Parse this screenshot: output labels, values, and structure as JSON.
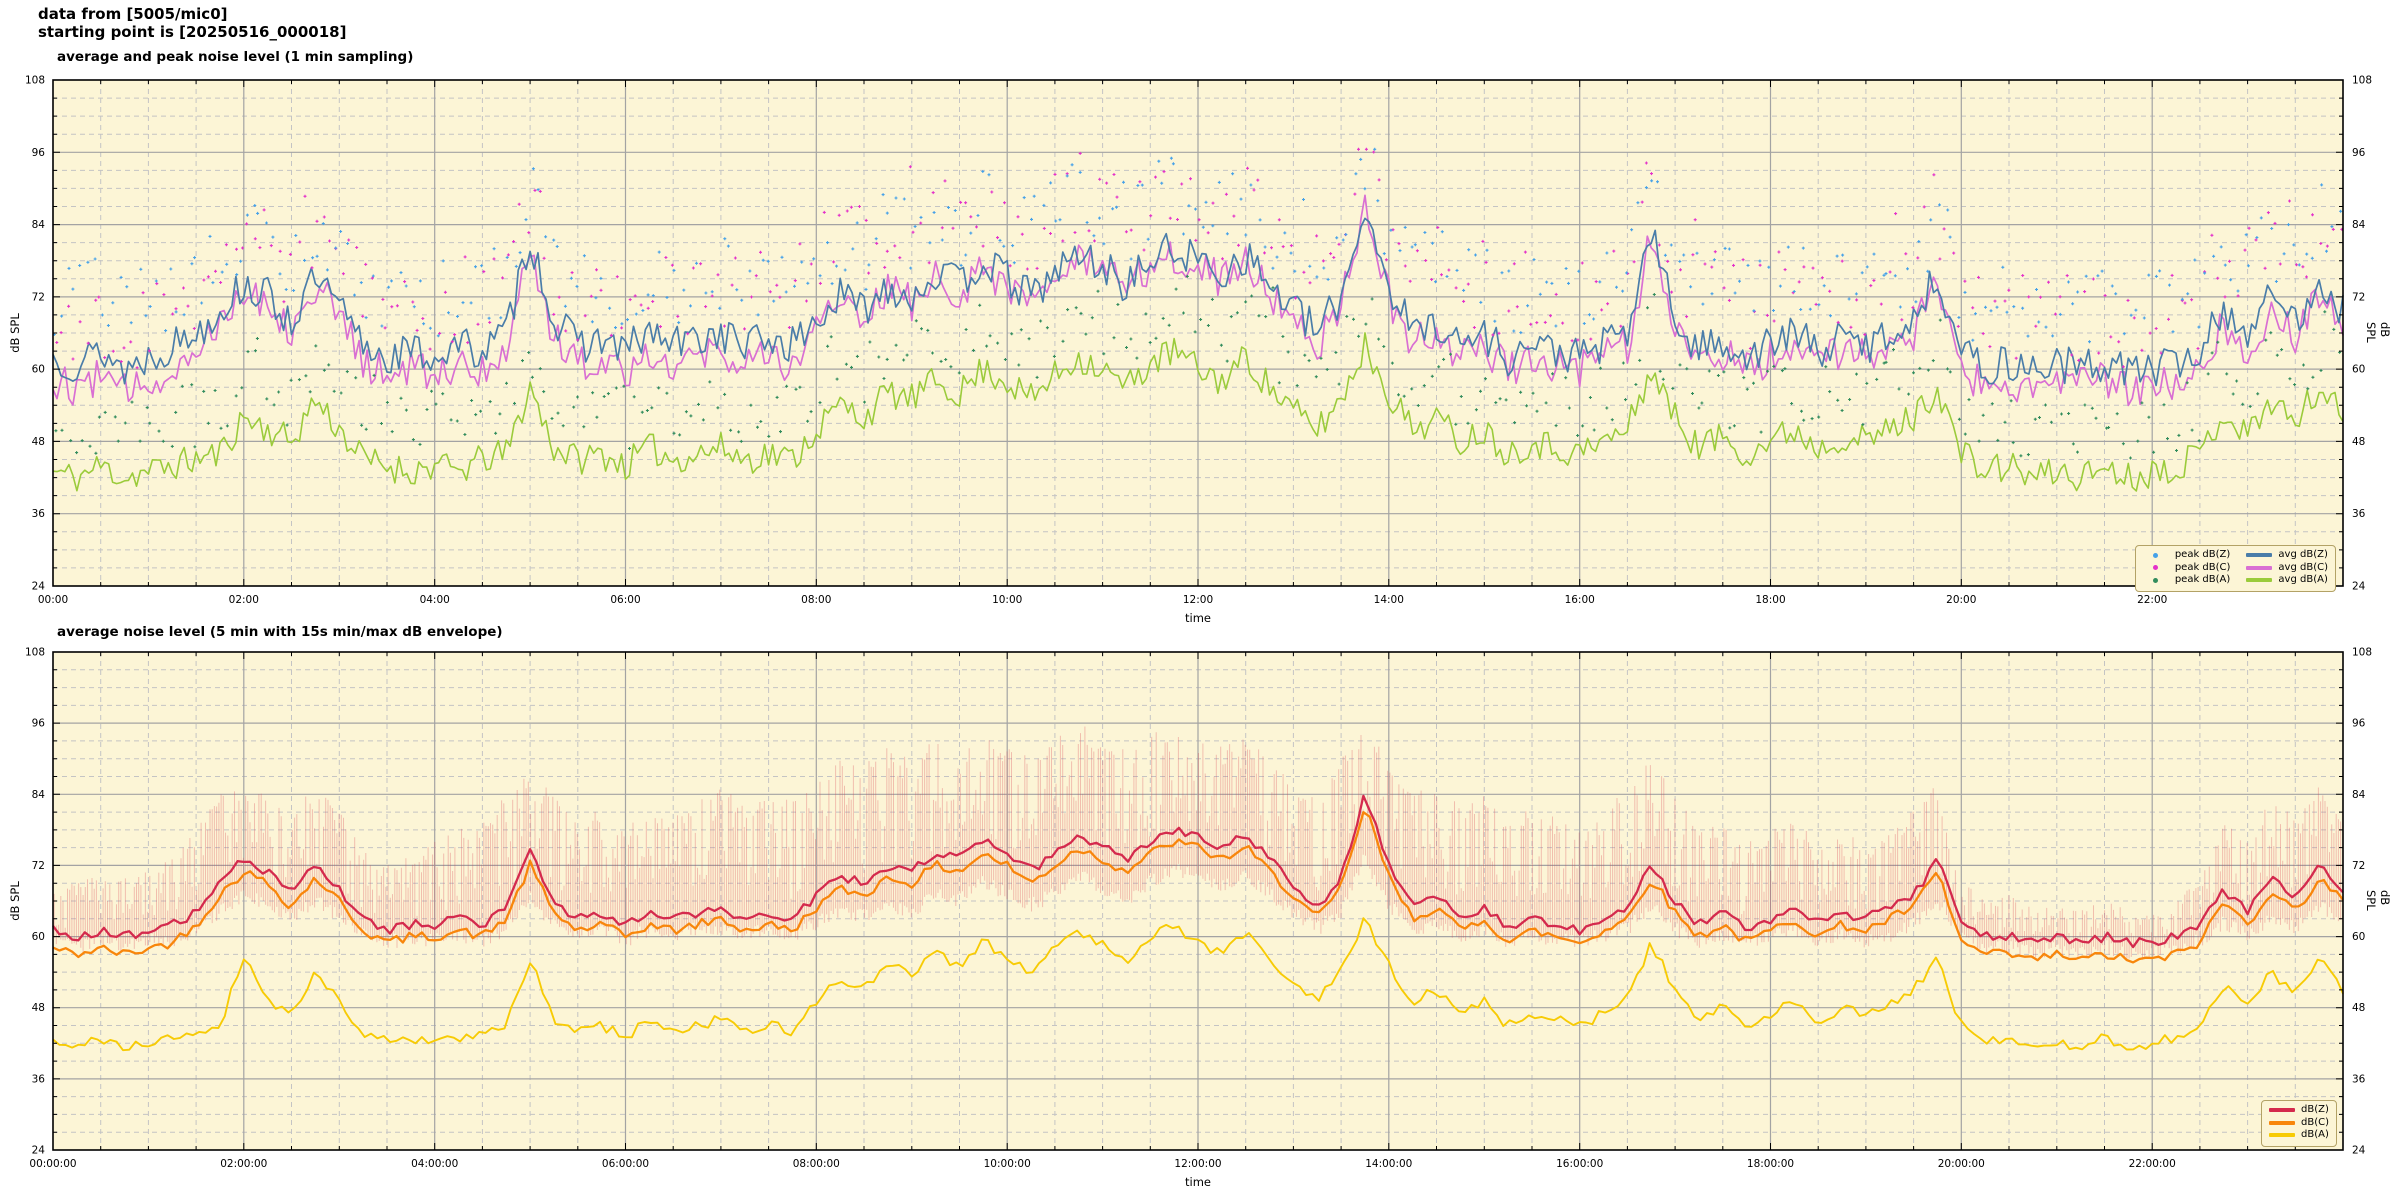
{
  "header": {
    "line1": "data from [5005/mic0]",
    "line2": "starting point is [20250516_000018]"
  },
  "style": {
    "page_bg": "#ffffff",
    "plot_bg": "#fcf5d6",
    "grid_major": "#a3a3a3",
    "grid_minor": "#c4c4c4",
    "border": "#000000",
    "legend_border": "#b3a266",
    "legend_bg": "#fcf5d6"
  },
  "chart_data": [
    {
      "type": "line",
      "title": "average and peak noise level (1 min sampling)",
      "xlabel": "time",
      "ylabel": "dB SPL",
      "y2label": "dB SPL",
      "ylim": [
        24,
        108
      ],
      "yticks": [
        24,
        36,
        48,
        60,
        72,
        84,
        96,
        108
      ],
      "y_minor_step": 3,
      "x_range_minutes": [
        0,
        1440
      ],
      "xtick_interval_min": 120,
      "x_minor_min": 30,
      "xtick_labels": [
        "00:00",
        "02:00",
        "04:00",
        "06:00",
        "08:00",
        "10:00",
        "12:00",
        "14:00",
        "16:00",
        "18:00",
        "20:00",
        "22:00"
      ],
      "anchor_interval_min": 15,
      "series": [
        {
          "name": "avg dB(A)",
          "style": "line",
          "color": "#9bcb3b",
          "width": 1.6,
          "jitter_db": 2.6,
          "step_min": 2.5,
          "seed": 11,
          "values": [
            43,
            42,
            44,
            42,
            43,
            44,
            45,
            46,
            52,
            50,
            48,
            55,
            50,
            45,
            44,
            43,
            44,
            43,
            45,
            46,
            57,
            47,
            45,
            46,
            44,
            47,
            45,
            46,
            47,
            45,
            46,
            45,
            50,
            54,
            52,
            56,
            55,
            58,
            56,
            60,
            58,
            55,
            59,
            62,
            60,
            57,
            61,
            63,
            60,
            58,
            62,
            57,
            53,
            50,
            55,
            64,
            56,
            50,
            52,
            48,
            50,
            46,
            48,
            47,
            46,
            48,
            50,
            60,
            52,
            47,
            49,
            46,
            48,
            50,
            47,
            49,
            48,
            50,
            52,
            57,
            46,
            43,
            44,
            42,
            43,
            42,
            44,
            42,
            43,
            44,
            46,
            53,
            49,
            55,
            51,
            57,
            52
          ]
        },
        {
          "name": "avg dB(C)",
          "style": "line",
          "color": "#d96fd3",
          "width": 1.7,
          "jitter_db": 3.2,
          "step_min": 2.5,
          "seed": 12,
          "values": [
            58,
            57,
            59,
            56,
            58,
            60,
            63,
            69,
            73,
            71,
            67,
            74,
            69,
            61,
            59,
            60,
            59,
            61,
            60,
            63,
            81,
            65,
            61,
            62,
            60,
            63,
            61,
            62,
            63,
            61,
            62,
            61,
            67,
            71,
            69,
            73,
            71,
            75,
            73,
            77,
            74,
            71,
            75,
            78,
            76,
            73,
            77,
            79,
            77,
            75,
            78,
            73,
            68,
            64,
            71,
            86,
            72,
            64,
            66,
            62,
            64,
            60,
            62,
            61,
            60,
            62,
            64,
            82,
            66,
            61,
            63,
            60,
            62,
            64,
            61,
            63,
            62,
            64,
            66,
            74,
            60,
            57,
            58,
            57,
            58,
            57,
            58,
            57,
            57,
            58,
            60,
            68,
            63,
            70,
            65,
            73,
            67
          ]
        },
        {
          "name": "avg dB(Z)",
          "style": "line",
          "color": "#4a7da9",
          "width": 1.7,
          "jitter_db": 3.2,
          "step_min": 2.5,
          "seed": 13,
          "values": [
            62,
            61,
            63,
            60,
            62,
            64,
            66,
            70,
            74,
            72,
            68,
            75,
            70,
            64,
            62,
            63,
            62,
            64,
            63,
            66,
            82,
            68,
            64,
            65,
            63,
            66,
            64,
            65,
            66,
            64,
            65,
            64,
            68,
            72,
            70,
            74,
            72,
            76,
            74,
            78,
            75,
            72,
            76,
            79,
            77,
            74,
            78,
            80,
            78,
            76,
            79,
            74,
            70,
            66,
            72,
            87,
            74,
            66,
            68,
            64,
            66,
            62,
            64,
            63,
            62,
            64,
            66,
            83,
            68,
            63,
            65,
            62,
            64,
            66,
            63,
            65,
            64,
            66,
            68,
            76,
            63,
            60,
            61,
            60,
            61,
            60,
            61,
            60,
            60,
            61,
            63,
            70,
            66,
            72,
            68,
            75,
            70
          ]
        },
        {
          "name": "peak dB(A)",
          "style": "scatter",
          "color": "#318c5c",
          "base_index": 0,
          "offset_db": [
            2,
            13
          ],
          "seed": 21
        },
        {
          "name": "peak dB(C)",
          "style": "scatter",
          "color": "#e431c9",
          "base_index": 1,
          "offset_db": [
            3,
            18
          ],
          "seed": 22
        },
        {
          "name": "peak dB(Z)",
          "style": "scatter",
          "color": "#45a1e8",
          "base_index": 2,
          "offset_db": [
            3,
            16
          ],
          "seed": 23
        }
      ],
      "legend": {
        "items": [
          {
            "marker": "dot",
            "color": "#45a1e8",
            "label": "peak dB(Z)"
          },
          {
            "marker": "line",
            "color": "#4a7da9",
            "label": "avg dB(Z)"
          },
          {
            "marker": "dot",
            "color": "#e431c9",
            "label": "peak dB(C)"
          },
          {
            "marker": "line",
            "color": "#d96fd3",
            "label": "avg dB(C)"
          },
          {
            "marker": "dot",
            "color": "#318c5c",
            "label": "peak dB(A)"
          },
          {
            "marker": "line",
            "color": "#9bcb3b",
            "label": "avg dB(A)"
          }
        ]
      }
    },
    {
      "type": "line",
      "title": "average noise level (5 min with 15s min/max dB envelope)",
      "xlabel": "time",
      "ylabel": "dB SPL",
      "y2label": "dB SPL",
      "ylim": [
        24,
        108
      ],
      "yticks": [
        24,
        36,
        48,
        60,
        72,
        84,
        96,
        108
      ],
      "y_minor_step": 3,
      "x_range_minutes": [
        0,
        1440
      ],
      "xtick_interval_min": 120,
      "x_minor_min": 30,
      "xtick_labels": [
        "00:00:00",
        "02:00:00",
        "04:00:00",
        "06:00:00",
        "08:00:00",
        "10:00:00",
        "12:00:00",
        "14:00:00",
        "16:00:00",
        "18:00:00",
        "20:00:00",
        "22:00:00"
      ],
      "anchor_interval_min": 15,
      "envelope": {
        "color": "rgba(214,62,78,0.30)",
        "seed": 31,
        "hi": [
          70,
          69,
          71,
          70,
          71,
          74,
          78,
          84,
          86,
          84,
          82,
          85,
          82,
          75,
          73,
          74,
          76,
          78,
          80,
          84,
          88,
          84,
          80,
          82,
          78,
          83,
          80,
          84,
          86,
          82,
          84,
          83,
          88,
          90,
          89,
          92,
          91,
          94,
          92,
          95,
          93,
          91,
          94,
          96,
          94,
          92,
          95,
          96,
          94,
          92,
          94,
          90,
          86,
          84,
          90,
          96,
          90,
          84,
          86,
          82,
          84,
          80,
          82,
          80,
          78,
          82,
          86,
          92,
          84,
          78,
          80,
          76,
          78,
          80,
          76,
          78,
          76,
          78,
          82,
          86,
          70,
          66,
          67,
          65,
          66,
          65,
          66,
          65,
          65,
          66,
          70,
          80,
          76,
          84,
          80,
          86,
          82
        ],
        "lo": [
          58,
          57,
          58,
          57,
          58,
          58,
          60,
          63,
          66,
          64,
          62,
          65,
          62,
          59,
          58,
          58,
          58,
          59,
          58,
          60,
          65,
          61,
          59,
          60,
          58,
          60,
          59,
          60,
          60,
          59,
          60,
          59,
          61,
          63,
          62,
          64,
          63,
          66,
          65,
          68,
          66,
          64,
          66,
          69,
          67,
          65,
          68,
          70,
          69,
          67,
          69,
          66,
          63,
          60,
          63,
          72,
          64,
          60,
          61,
          59,
          60,
          58,
          59,
          58,
          58,
          59,
          60,
          64,
          60,
          58,
          59,
          58,
          59,
          60,
          58,
          59,
          58,
          59,
          61,
          65,
          59,
          57,
          57,
          56,
          57,
          56,
          57,
          56,
          56,
          57,
          58,
          61,
          59,
          62,
          60,
          64,
          61
        ]
      },
      "series": [
        {
          "name": "dB(A)",
          "style": "line",
          "color": "#f7cb05",
          "width": 1.9,
          "jitter_db": 0.9,
          "step_min": 4,
          "seed": 41,
          "values": [
            42,
            41,
            43,
            41,
            42,
            43,
            44,
            45,
            57,
            49,
            47,
            54,
            49,
            44,
            43,
            42,
            43,
            42,
            44,
            45,
            56,
            46,
            44,
            45,
            43,
            46,
            44,
            45,
            46,
            44,
            45,
            44,
            49,
            53,
            51,
            55,
            54,
            57,
            55,
            59,
            57,
            54,
            58,
            61,
            59,
            56,
            60,
            62,
            59,
            57,
            61,
            56,
            52,
            49,
            54,
            63,
            55,
            49,
            51,
            47,
            49,
            45,
            47,
            46,
            45,
            47,
            49,
            59,
            51,
            46,
            48,
            45,
            47,
            49,
            46,
            48,
            47,
            49,
            51,
            56,
            45,
            42,
            43,
            41,
            42,
            41,
            43,
            41,
            42,
            43,
            45,
            52,
            48,
            54,
            50,
            56,
            51
          ]
        },
        {
          "name": "dB(C)",
          "style": "line",
          "color": "#f8860b",
          "width": 2.3,
          "jitter_db": 0.8,
          "step_min": 4,
          "seed": 42,
          "values": [
            58,
            57,
            58,
            57,
            58,
            59,
            62,
            67,
            71,
            69,
            65,
            70,
            66,
            61,
            59,
            60,
            60,
            61,
            60,
            63,
            72,
            64,
            61,
            62,
            60,
            62,
            61,
            62,
            63,
            61,
            62,
            61,
            65,
            68,
            67,
            70,
            69,
            72,
            71,
            74,
            72,
            69,
            72,
            75,
            73,
            71,
            74,
            76,
            75,
            73,
            75,
            71,
            67,
            63,
            68,
            82,
            70,
            63,
            65,
            61,
            63,
            59,
            61,
            60,
            59,
            61,
            63,
            70,
            64,
            60,
            62,
            59,
            61,
            63,
            60,
            62,
            61,
            63,
            65,
            71,
            59,
            57,
            57,
            56,
            57,
            56,
            57,
            56,
            56,
            57,
            59,
            66,
            62,
            68,
            64,
            70,
            66
          ]
        },
        {
          "name": "dB(Z)",
          "style": "line",
          "color": "#d42a4d",
          "width": 2.3,
          "jitter_db": 0.8,
          "step_min": 4,
          "seed": 43,
          "values": [
            61,
            60,
            61,
            60,
            61,
            62,
            64,
            69,
            73,
            71,
            67,
            72,
            68,
            63,
            61,
            62,
            62,
            63,
            62,
            65,
            74,
            66,
            63,
            64,
            62,
            64,
            63,
            64,
            65,
            63,
            64,
            63,
            67,
            70,
            69,
            72,
            71,
            74,
            73,
            76,
            74,
            71,
            74,
            77,
            75,
            73,
            76,
            78,
            77,
            75,
            77,
            73,
            69,
            65,
            70,
            84,
            72,
            65,
            67,
            63,
            65,
            61,
            63,
            62,
            61,
            63,
            65,
            72,
            66,
            62,
            64,
            61,
            63,
            65,
            62,
            64,
            63,
            65,
            67,
            73,
            62,
            60,
            60,
            59,
            60,
            59,
            60,
            59,
            59,
            60,
            62,
            68,
            64,
            70,
            66,
            72,
            68
          ]
        }
      ],
      "legend": {
        "items": [
          {
            "marker": "line",
            "color": "#d42a4d",
            "label": "dB(Z)"
          },
          {
            "marker": "line",
            "color": "#f8860b",
            "label": "dB(C)"
          },
          {
            "marker": "line",
            "color": "#f7cb05",
            "label": "dB(A)"
          }
        ]
      }
    }
  ]
}
